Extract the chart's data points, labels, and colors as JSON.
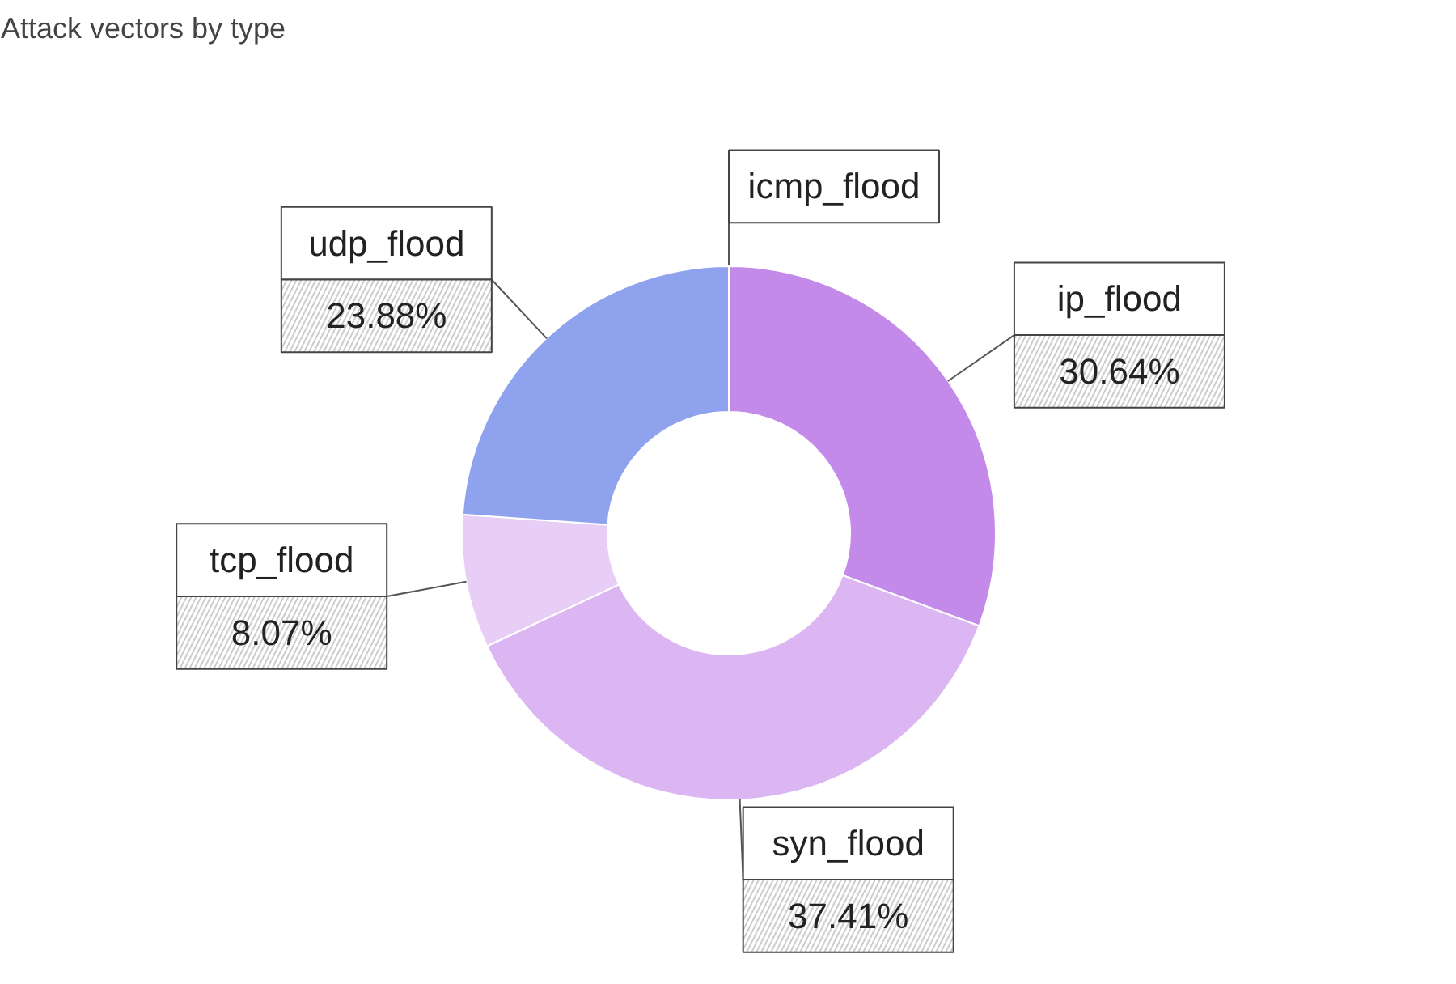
{
  "chart_data": {
    "type": "donut",
    "title": "Attack vectors by type",
    "categories": [
      "icmp_flood",
      "ip_flood",
      "syn_flood",
      "tcp_flood",
      "udp_flood"
    ],
    "values": [
      0,
      30.64,
      37.41,
      8.07,
      23.88
    ],
    "value_labels": [
      null,
      "30.64%",
      "37.41%",
      "8.07%",
      "23.88%"
    ],
    "colors": [
      "#7a8fe0",
      "#c48ae9",
      "#dcb6f3",
      "#e8cef6",
      "#8fa2ee"
    ],
    "legend": false
  }
}
